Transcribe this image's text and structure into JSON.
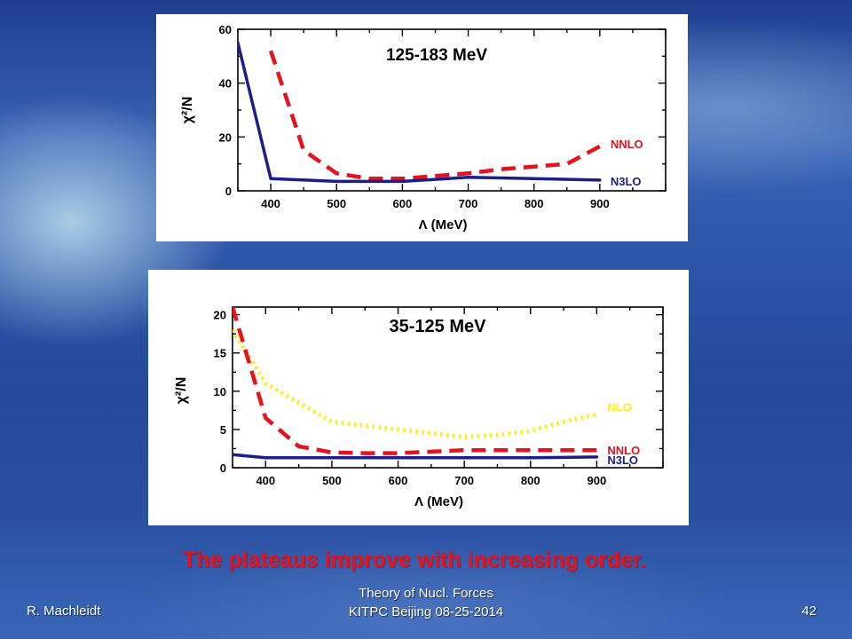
{
  "chart_data": [
    {
      "type": "line",
      "title": "125-183 MeV",
      "xlabel": "Λ (MeV)",
      "ylabel": "χ²/N",
      "xlim": [
        350,
        1000
      ],
      "ylim": [
        0,
        60
      ],
      "xticks": [
        "400",
        "500",
        "600",
        "700",
        "800",
        "900"
      ],
      "yticks": [
        "0",
        "20",
        "40",
        "60"
      ],
      "legend": "right end labels",
      "series": [
        {
          "name": "NNLO",
          "color": "#e4141e",
          "style": "dashed",
          "x": [
            400,
            450,
            500,
            550,
            600,
            650,
            700,
            750,
            800,
            850,
            900
          ],
          "y": [
            52,
            15,
            6.5,
            4.5,
            4.5,
            5.5,
            6.5,
            8,
            9,
            10,
            16.5
          ]
        },
        {
          "name": "N3LO",
          "color": "#1a1f8a",
          "style": "solid",
          "x": [
            350,
            400,
            500,
            600,
            700,
            800,
            900
          ],
          "y": [
            55,
            4.5,
            3.5,
            3.5,
            5,
            4.5,
            4
          ]
        }
      ]
    },
    {
      "type": "line",
      "title": "35-125 MeV",
      "xlabel": "Λ (MeV)",
      "ylabel": "χ²/N",
      "xlim": [
        350,
        1000
      ],
      "ylim": [
        0,
        21
      ],
      "xticks": [
        "400",
        "500",
        "600",
        "700",
        "800",
        "900"
      ],
      "yticks": [
        "0",
        "5",
        "10",
        "15",
        "20"
      ],
      "legend": "right end labels",
      "series": [
        {
          "name": "NLO",
          "color": "#ffee1a",
          "style": "dotted",
          "x": [
            350,
            400,
            450,
            500,
            550,
            600,
            650,
            700,
            750,
            800,
            850,
            900
          ],
          "y": [
            18,
            11,
            8.5,
            6,
            5.5,
            5,
            4.5,
            4,
            4.3,
            4.8,
            6,
            7
          ]
        },
        {
          "name": "NNLO",
          "color": "#e4141e",
          "style": "dashed",
          "x": [
            350,
            400,
            450,
            500,
            550,
            600,
            650,
            700,
            750,
            800,
            850,
            900
          ],
          "y": [
            21,
            6.5,
            2.8,
            2,
            1.9,
            1.9,
            2.1,
            2.3,
            2.3,
            2.3,
            2.3,
            2.3
          ]
        },
        {
          "name": "N3LO",
          "color": "#1a1f8a",
          "style": "solid",
          "x": [
            350,
            400,
            500,
            600,
            700,
            800,
            900
          ],
          "y": [
            1.7,
            1.3,
            1.3,
            1.3,
            1.3,
            1.3,
            1.4
          ]
        }
      ]
    }
  ],
  "caption": "The plateaus improve with increasing order.",
  "footer": {
    "author": "R. Machleidt",
    "center_line1": "Theory of Nucl. Forces",
    "center_line2": "KITPC Beijing 08-25-2014",
    "page": "42"
  }
}
